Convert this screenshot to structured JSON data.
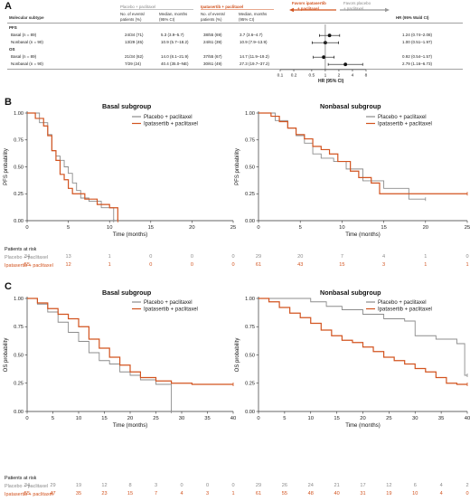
{
  "panel_a": {
    "letter": "A",
    "header": {
      "placebo_group": "Placebo + paclitaxel",
      "ipat_group": "Ipatasertib + paclitaxel",
      "col_molecular": "Molecular subtype",
      "col_events_l1": "No. of events/",
      "col_events_l2": "patients (%)",
      "col_median_l1": "Median, months",
      "col_median_l2": "(95% CI)",
      "favors_ipat_l1": "Favors ipatasertib",
      "favors_ipat_l2": "+ paclitaxel",
      "favors_placebo_l1": "Favors placebo",
      "favors_placebo_l2": "+ paclitaxel",
      "hr_header": "HR (95% Wald CI)"
    },
    "sections": [
      {
        "label": "PFS",
        "rows": [
          {
            "subtype": "Basal (n = 89)",
            "pl_events": "24/34 (71)",
            "pl_median": "5.3 (3.9–5.7)",
            "ip_events": "38/55 (69)",
            "ip_median": "3.7 (3.6–4.7)",
            "hr_text": "1.24 (0.74–2.08)",
            "hr": 1.24,
            "lo": 0.74,
            "hi": 2.08
          },
          {
            "subtype": "Nonbasal (n = 90)",
            "pl_events": "13/29 (45)",
            "pl_median": "10.9 (5.7–18.2)",
            "ip_events": "24/61 (39)",
            "ip_median": "10.9 (7.9–13.9)",
            "hr_text": "1.00 (0.51–1.97)",
            "hr": 1.0,
            "lo": 0.51,
            "hi": 1.97
          }
        ]
      },
      {
        "label": "OS",
        "rows": [
          {
            "subtype": "Basal (n = 89)",
            "pl_events": "21/34 (62)",
            "pl_median": "14.0 (8.1–21.9)",
            "ip_events": "37/55 (67)",
            "ip_median": "14.7 (11.9–19.2)",
            "hr_text": "0.92 (0.54–1.57)",
            "hr": 0.92,
            "lo": 0.54,
            "hi": 1.57
          },
          {
            "subtype": "Nonbasal (n = 90)",
            "pl_events": "7/29 (24)",
            "pl_median": "40.4 (35.0–NE)",
            "ip_events": "30/61 (49)",
            "ip_median": "27.3 (19.7–37.2)",
            "hr_text": "2.79 (1.16–6.73)",
            "hr": 2.79,
            "lo": 1.16,
            "hi": 6.73
          }
        ]
      }
    ],
    "axis_ticks": [
      "0.1",
      "0.2",
      "0.5",
      "1",
      "2",
      "4",
      "8"
    ],
    "axis_label": "HR (95% CI)"
  },
  "panel_b": {
    "letter": "B",
    "patients_at_risk": "Patients at risk",
    "placebo_label": "Placebo + paclitaxel",
    "ipat_label": "Ipatasertib + paclitaxel"
  },
  "panel_c": {
    "letter": "C",
    "patients_at_risk": "Patients at risk",
    "placebo_label": "Placebo + paclitaxel",
    "ipat_label": "Ipatasertib + paclitaxel"
  },
  "chart_data": [
    {
      "type": "line",
      "title": "Basal subgroup",
      "xlabel": "Time (months)",
      "ylabel": "PFS probability",
      "xlim": [
        0,
        25
      ],
      "ylim": [
        0,
        1
      ],
      "xticks": [
        0,
        5,
        10,
        15,
        20,
        25
      ],
      "yticks": [
        "0.00",
        "0.25",
        "0.50",
        "0.75",
        "1.00"
      ],
      "legend": "top-right",
      "series": [
        {
          "name": "Placebo + paclitaxel",
          "color": "#8c8c8c",
          "x": [
            0,
            1.5,
            2.5,
            3.0,
            3.5,
            4.0,
            4.5,
            5.0,
            5.5,
            6.0,
            6.5,
            7.5,
            9.0,
            10.5
          ],
          "y": [
            1.0,
            0.91,
            0.8,
            0.65,
            0.6,
            0.56,
            0.5,
            0.44,
            0.35,
            0.28,
            0.21,
            0.18,
            0.12,
            0.0
          ]
        },
        {
          "name": "Ipatasertib + paclitaxel",
          "color": "#d2531f",
          "x": [
            0,
            1.0,
            2.0,
            2.5,
            3.0,
            3.5,
            4.0,
            4.5,
            5.0,
            5.5,
            7.0,
            8.5,
            10.0,
            11.0
          ],
          "y": [
            1.0,
            0.95,
            0.88,
            0.79,
            0.65,
            0.56,
            0.43,
            0.38,
            0.3,
            0.25,
            0.2,
            0.15,
            0.12,
            0.0
          ]
        }
      ],
      "risk_table": {
        "x": [
          0,
          5,
          10,
          15,
          20,
          25
        ],
        "placebo": [
          "34",
          "13",
          "1",
          "0",
          "0",
          "0"
        ],
        "ipat": [
          "55",
          "12",
          "1",
          "0",
          "0",
          "0"
        ]
      }
    },
    {
      "type": "line",
      "title": "Nonbasal subgroup",
      "xlabel": "Time (months)",
      "ylabel": "PFS probability",
      "xlim": [
        0,
        25
      ],
      "ylim": [
        0,
        1
      ],
      "xticks": [
        0,
        5,
        10,
        15,
        20,
        25
      ],
      "yticks": [
        "0.00",
        "0.25",
        "0.50",
        "0.75",
        "1.00"
      ],
      "legend": "top-right",
      "series": [
        {
          "name": "Placebo + paclitaxel",
          "color": "#8c8c8c",
          "x": [
            0,
            2.0,
            3.5,
            4.5,
            5.5,
            6.5,
            7.5,
            9.0,
            10.5,
            12.5,
            15.0,
            18.0,
            20.0
          ],
          "y": [
            1.0,
            0.93,
            0.86,
            0.79,
            0.72,
            0.62,
            0.58,
            0.55,
            0.48,
            0.37,
            0.3,
            0.2,
            0.2
          ]
        },
        {
          "name": "Ipatasertib + paclitaxel",
          "color": "#d2531f",
          "x": [
            0,
            1.5,
            2.5,
            3.5,
            4.5,
            5.5,
            6.5,
            7.5,
            8.5,
            9.5,
            11.0,
            12.0,
            13.5,
            14.5,
            16.0,
            25.0
          ],
          "y": [
            1.0,
            0.97,
            0.92,
            0.86,
            0.8,
            0.76,
            0.69,
            0.66,
            0.62,
            0.55,
            0.46,
            0.4,
            0.35,
            0.25,
            0.25,
            0.25
          ]
        }
      ],
      "risk_table": {
        "x": [
          0,
          5,
          10,
          15,
          20,
          25
        ],
        "placebo": [
          "29",
          "20",
          "7",
          "4",
          "1",
          "0"
        ],
        "ipat": [
          "61",
          "43",
          "15",
          "3",
          "1",
          "1"
        ]
      }
    },
    {
      "type": "line",
      "title": "Basal subgroup",
      "xlabel": "Time (months)",
      "ylabel": "OS probability",
      "xlim": [
        0,
        40
      ],
      "ylim": [
        0,
        1
      ],
      "xticks": [
        0,
        5,
        10,
        15,
        20,
        25,
        30,
        35,
        40
      ],
      "yticks": [
        "0.00",
        "0.25",
        "0.50",
        "0.75",
        "1.00"
      ],
      "legend": "top-right",
      "series": [
        {
          "name": "Placebo + paclitaxel",
          "color": "#8c8c8c",
          "x": [
            0,
            2,
            4,
            6,
            8,
            10,
            12,
            14,
            16,
            18,
            20,
            22,
            25,
            27.5,
            28
          ],
          "y": [
            1.0,
            0.95,
            0.88,
            0.79,
            0.7,
            0.62,
            0.52,
            0.45,
            0.42,
            0.35,
            0.32,
            0.28,
            0.24,
            0.24,
            0.0
          ]
        },
        {
          "name": "Ipatasertib + paclitaxel",
          "color": "#d2531f",
          "x": [
            0,
            2,
            4,
            6,
            8,
            10,
            12,
            14,
            16,
            18,
            20,
            22,
            25,
            28,
            32,
            35,
            40
          ],
          "y": [
            1.0,
            0.96,
            0.91,
            0.86,
            0.82,
            0.75,
            0.64,
            0.56,
            0.48,
            0.41,
            0.35,
            0.3,
            0.27,
            0.25,
            0.24,
            0.24,
            0.24
          ]
        }
      ],
      "risk_table": {
        "x": [
          0,
          5,
          10,
          15,
          20,
          25,
          30,
          35,
          40
        ],
        "placebo": [
          "34",
          "29",
          "19",
          "12",
          "8",
          "3",
          "0",
          "0",
          "0"
        ],
        "ipat": [
          "55",
          "47",
          "35",
          "23",
          "15",
          "7",
          "4",
          "3",
          "1"
        ]
      }
    },
    {
      "type": "line",
      "title": "Nonbasal subgroup",
      "xlabel": "Time (months)",
      "ylabel": "OS probability",
      "xlim": [
        0,
        40
      ],
      "ylim": [
        0,
        1
      ],
      "xticks": [
        0,
        5,
        10,
        15,
        20,
        25,
        30,
        35,
        40
      ],
      "yticks": [
        "0.00",
        "0.25",
        "0.50",
        "0.75",
        "1.00"
      ],
      "legend": "top-right",
      "series": [
        {
          "name": "Placebo + paclitaxel",
          "color": "#8c8c8c",
          "x": [
            0,
            8,
            10,
            13,
            16,
            20,
            24,
            28,
            30,
            34,
            38,
            39.5,
            40
          ],
          "y": [
            1.0,
            1.0,
            0.97,
            0.93,
            0.9,
            0.86,
            0.82,
            0.8,
            0.67,
            0.64,
            0.6,
            0.32,
            0.32
          ]
        },
        {
          "name": "Ipatasertib + paclitaxel",
          "color": "#d2531f",
          "x": [
            0,
            2,
            4,
            6,
            8,
            10,
            12,
            14,
            16,
            18,
            20,
            22,
            24,
            26,
            28,
            30,
            32,
            34,
            36,
            38,
            40
          ],
          "y": [
            1.0,
            0.97,
            0.92,
            0.87,
            0.83,
            0.78,
            0.72,
            0.67,
            0.63,
            0.61,
            0.57,
            0.53,
            0.48,
            0.45,
            0.42,
            0.38,
            0.35,
            0.3,
            0.25,
            0.24,
            0.24
          ]
        }
      ],
      "risk_table": {
        "x": [
          0,
          5,
          10,
          15,
          20,
          25,
          30,
          35,
          40
        ],
        "placebo": [
          "29",
          "26",
          "24",
          "21",
          "17",
          "12",
          "6",
          "4",
          "2"
        ],
        "ipat": [
          "61",
          "55",
          "48",
          "40",
          "31",
          "19",
          "10",
          "4",
          "0"
        ]
      }
    }
  ]
}
